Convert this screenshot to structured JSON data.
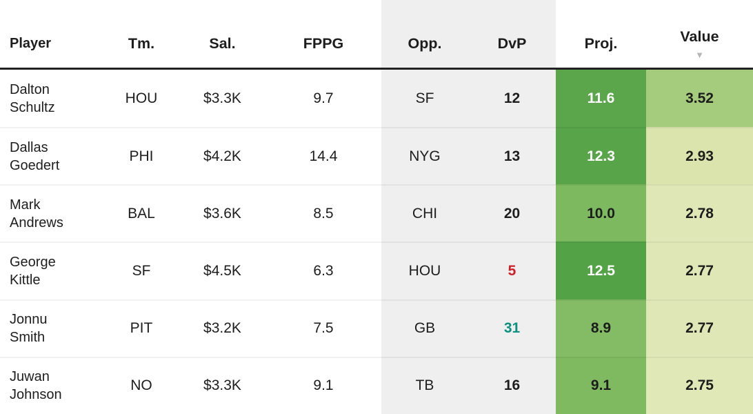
{
  "table": {
    "columns": [
      {
        "key": "player",
        "label": "Player",
        "sorted": false
      },
      {
        "key": "tm",
        "label": "Tm.",
        "sorted": false
      },
      {
        "key": "sal",
        "label": "Sal.",
        "sorted": false
      },
      {
        "key": "fppg",
        "label": "FPPG",
        "sorted": false
      },
      {
        "key": "opp",
        "label": "Opp.",
        "sorted": false
      },
      {
        "key": "dvp",
        "label": "DvP",
        "sorted": false
      },
      {
        "key": "proj",
        "label": "Proj.",
        "sorted": false
      },
      {
        "key": "value",
        "label": "Value",
        "sorted": true
      }
    ],
    "sort_indicator": "▼",
    "rows": [
      {
        "player": "Dalton Schultz",
        "tm": "HOU",
        "sal": "$3.3K",
        "fppg": "9.7",
        "opp": "SF",
        "dvp": "12",
        "dvp_color": "#1d1d1d",
        "proj": "11.6",
        "proj_bg": "#5ba64b",
        "proj_color": "#ffffff",
        "value": "3.52",
        "value_bg": "#a5cb7d"
      },
      {
        "player": "Dallas Goedert",
        "tm": "PHI",
        "sal": "$4.2K",
        "fppg": "14.4",
        "opp": "NYG",
        "dvp": "13",
        "dvp_color": "#1d1d1d",
        "proj": "12.3",
        "proj_bg": "#58a449",
        "proj_color": "#ffffff",
        "value": "2.93",
        "value_bg": "#dce4ae"
      },
      {
        "player": "Mark Andrews",
        "tm": "BAL",
        "sal": "$3.6K",
        "fppg": "8.5",
        "opp": "CHI",
        "dvp": "20",
        "dvp_color": "#1d1d1d",
        "proj": "10.0",
        "proj_bg": "#7cb95f",
        "proj_color": "#1d1d1d",
        "value": "2.78",
        "value_bg": "#e0e7b6"
      },
      {
        "player": "George Kittle",
        "tm": "SF",
        "sal": "$4.5K",
        "fppg": "6.3",
        "opp": "HOU",
        "dvp": "5",
        "dvp_color": "#cd2026",
        "proj": "12.5",
        "proj_bg": "#54a246",
        "proj_color": "#ffffff",
        "value": "2.77",
        "value_bg": "#e0e7b6"
      },
      {
        "player": "Jonnu Smith",
        "tm": "PIT",
        "sal": "$3.2K",
        "fppg": "7.5",
        "opp": "GB",
        "dvp": "31",
        "dvp_color": "#0c9080",
        "proj": "8.9",
        "proj_bg": "#83bc64",
        "proj_color": "#1d1d1d",
        "value": "2.77",
        "value_bg": "#e0e7b6"
      },
      {
        "player": "Juwan Johnson",
        "tm": "NO",
        "sal": "$3.3K",
        "fppg": "9.1",
        "opp": "TB",
        "dvp": "16",
        "dvp_color": "#1d1d1d",
        "proj": "9.1",
        "proj_bg": "#7fba61",
        "proj_color": "#1d1d1d",
        "value": "2.75",
        "value_bg": "#e1e8b7"
      }
    ]
  },
  "colors": {
    "header_border": "#212121",
    "matchup_bg": "#efefef",
    "text": "#1d1d1d",
    "sort_arrow": "#b5b5b5",
    "dvp_bad": "#cd2026",
    "dvp_good": "#0c9080"
  }
}
